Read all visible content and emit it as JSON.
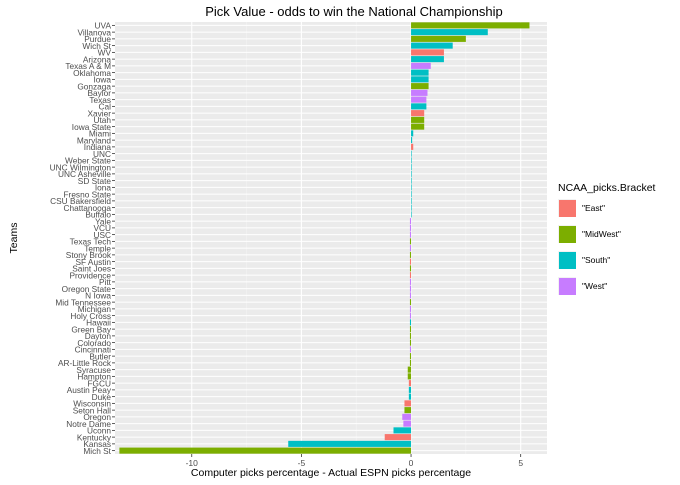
{
  "chart_data": {
    "type": "bar",
    "orientation": "horizontal",
    "title": "Pick Value - odds to win the National Championship",
    "xlabel": "Computer picks percentage - Actual ESPN picks percentage",
    "ylabel": "Teams",
    "xlim": [
      -13.5,
      6.2
    ],
    "xticks": [
      -10,
      -5,
      0,
      5
    ],
    "grid": true,
    "legend": {
      "title": "NCAA_picks.Bracket",
      "position": "right",
      "entries": [
        {
          "label": "\"East\"",
          "color": "#F8766D"
        },
        {
          "label": "\"MidWest\"",
          "color": "#7CAE00"
        },
        {
          "label": "\"South\"",
          "color": "#00BFC4"
        },
        {
          "label": "\"West\"",
          "color": "#C77CFF"
        }
      ]
    },
    "series_colors": {
      "East": "#F8766D",
      "MidWest": "#7CAE00",
      "South": "#00BFC4",
      "West": "#C77CFF"
    },
    "bars": [
      {
        "team": "UVA",
        "bracket": "MidWest",
        "value": 5.4
      },
      {
        "team": "Villanova",
        "bracket": "South",
        "value": 3.5
      },
      {
        "team": "Purdue",
        "bracket": "MidWest",
        "value": 2.5
      },
      {
        "team": "Wich St",
        "bracket": "South",
        "value": 1.9
      },
      {
        "team": "WV",
        "bracket": "East",
        "value": 1.5
      },
      {
        "team": "Arizona",
        "bracket": "South",
        "value": 1.5
      },
      {
        "team": "Texas A & M",
        "bracket": "West",
        "value": 0.9
      },
      {
        "team": "Oklahoma",
        "bracket": "South",
        "value": 0.8
      },
      {
        "team": "Iowa",
        "bracket": "South",
        "value": 0.8
      },
      {
        "team": "Gonzaga",
        "bracket": "MidWest",
        "value": 0.8
      },
      {
        "team": "Baylor",
        "bracket": "West",
        "value": 0.75
      },
      {
        "team": "Texas",
        "bracket": "West",
        "value": 0.7
      },
      {
        "team": "Cal",
        "bracket": "South",
        "value": 0.7
      },
      {
        "team": "Xavier",
        "bracket": "East",
        "value": 0.6
      },
      {
        "team": "Utah",
        "bracket": "MidWest",
        "value": 0.6
      },
      {
        "team": "Iowa State",
        "bracket": "MidWest",
        "value": 0.6
      },
      {
        "team": "Miami",
        "bracket": "South",
        "value": 0.1
      },
      {
        "team": "Maryland",
        "bracket": "South",
        "value": 0.05
      },
      {
        "team": "Indiana",
        "bracket": "East",
        "value": 0.1
      },
      {
        "team": "UNC",
        "bracket": "South",
        "value": 0.02
      },
      {
        "team": "Weber State",
        "bracket": "South",
        "value": 0.01
      },
      {
        "team": "UNC Wilmington",
        "bracket": "South",
        "value": 0.01
      },
      {
        "team": "UNC Asheville",
        "bracket": "South",
        "value": 0.01
      },
      {
        "team": "SD State",
        "bracket": "South",
        "value": 0.01
      },
      {
        "team": "Iona",
        "bracket": "South",
        "value": 0.01
      },
      {
        "team": "Fresno State",
        "bracket": "South",
        "value": 0.01
      },
      {
        "team": "CSU Bakersfield",
        "bracket": "South",
        "value": 0.01
      },
      {
        "team": "Chattanooga",
        "bracket": "South",
        "value": 0.01
      },
      {
        "team": "Buffalo",
        "bracket": "South",
        "value": 0.01
      },
      {
        "team": "Yale",
        "bracket": "West",
        "value": -0.05
      },
      {
        "team": "VCU",
        "bracket": "West",
        "value": -0.05
      },
      {
        "team": "USC",
        "bracket": "West",
        "value": -0.05
      },
      {
        "team": "Texas Tech",
        "bracket": "MidWest",
        "value": -0.05
      },
      {
        "team": "Temple",
        "bracket": "West",
        "value": -0.05
      },
      {
        "team": "Stony Brook",
        "bracket": "MidWest",
        "value": -0.05
      },
      {
        "team": "SF Austin",
        "bracket": "East",
        "value": -0.05
      },
      {
        "team": "Saint Joes",
        "bracket": "MidWest",
        "value": -0.05
      },
      {
        "team": "Providence",
        "bracket": "East",
        "value": -0.05
      },
      {
        "team": "Pitt",
        "bracket": "West",
        "value": -0.05
      },
      {
        "team": "Oregon State",
        "bracket": "West",
        "value": -0.05
      },
      {
        "team": "N Iowa",
        "bracket": "West",
        "value": -0.05
      },
      {
        "team": "Mid Tennessee",
        "bracket": "MidWest",
        "value": -0.05
      },
      {
        "team": "Michigan",
        "bracket": "West",
        "value": -0.05
      },
      {
        "team": "Holy Cross",
        "bracket": "West",
        "value": -0.05
      },
      {
        "team": "Hawaii",
        "bracket": "South",
        "value": -0.05
      },
      {
        "team": "Green Bay",
        "bracket": "MidWest",
        "value": -0.05
      },
      {
        "team": "Dayton",
        "bracket": "MidWest",
        "value": -0.05
      },
      {
        "team": "Colorado",
        "bracket": "MidWest",
        "value": -0.05
      },
      {
        "team": "Cincinnati",
        "bracket": "West",
        "value": -0.05
      },
      {
        "team": "Butler",
        "bracket": "MidWest",
        "value": -0.05
      },
      {
        "team": "AR-Little Rock",
        "bracket": "MidWest",
        "value": -0.05
      },
      {
        "team": "Syracuse",
        "bracket": "MidWest",
        "value": -0.15
      },
      {
        "team": "Hampton",
        "bracket": "MidWest",
        "value": -0.15
      },
      {
        "team": "FGCU",
        "bracket": "East",
        "value": -0.1
      },
      {
        "team": "Austin Peay",
        "bracket": "South",
        "value": -0.1
      },
      {
        "team": "Duke",
        "bracket": "South",
        "value": -0.1
      },
      {
        "team": "Wisconsin",
        "bracket": "East",
        "value": -0.3
      },
      {
        "team": "Seton Hall",
        "bracket": "MidWest",
        "value": -0.3
      },
      {
        "team": "Oregon",
        "bracket": "West",
        "value": -0.4
      },
      {
        "team": "Notre Dame",
        "bracket": "West",
        "value": -0.35
      },
      {
        "team": "Uconn",
        "bracket": "South",
        "value": -0.8
      },
      {
        "team": "Kentucky",
        "bracket": "East",
        "value": -1.2
      },
      {
        "team": "Kansas",
        "bracket": "South",
        "value": -5.6
      },
      {
        "team": "Mich St",
        "bracket": "MidWest",
        "value": -13.3
      }
    ]
  }
}
